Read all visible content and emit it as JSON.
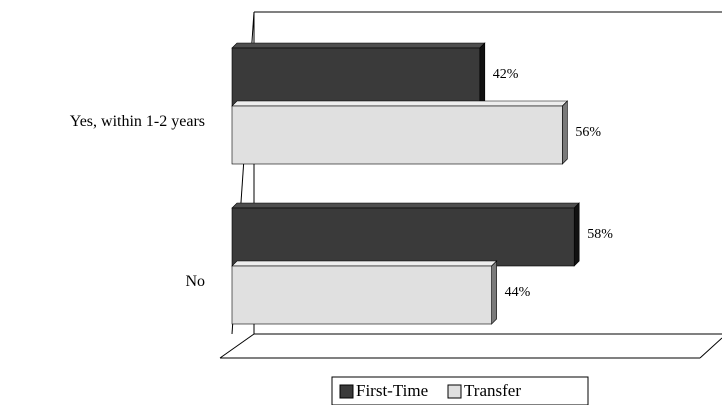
{
  "colors": {
    "first_time_face": "#3a3a3a",
    "first_time_top": "#4e4e4e",
    "first_time_side": "#111111",
    "transfer_face": "#e0e0e0",
    "transfer_top": "#eeeeee",
    "transfer_side": "#7a7a7a"
  },
  "chart_data": {
    "type": "bar",
    "orientation": "horizontal",
    "three_d": true,
    "categories": [
      "Yes, within 1-2 years",
      "No"
    ],
    "series": [
      {
        "name": "First-Time",
        "values": [
          42,
          58
        ],
        "labels": [
          "42%",
          "58%"
        ]
      },
      {
        "name": "Transfer",
        "values": [
          56,
          44
        ],
        "labels": [
          "56%",
          "44%"
        ]
      }
    ],
    "xlim": [
      0,
      100
    ],
    "unit": "%",
    "grid": false,
    "legend_position": "bottom"
  }
}
